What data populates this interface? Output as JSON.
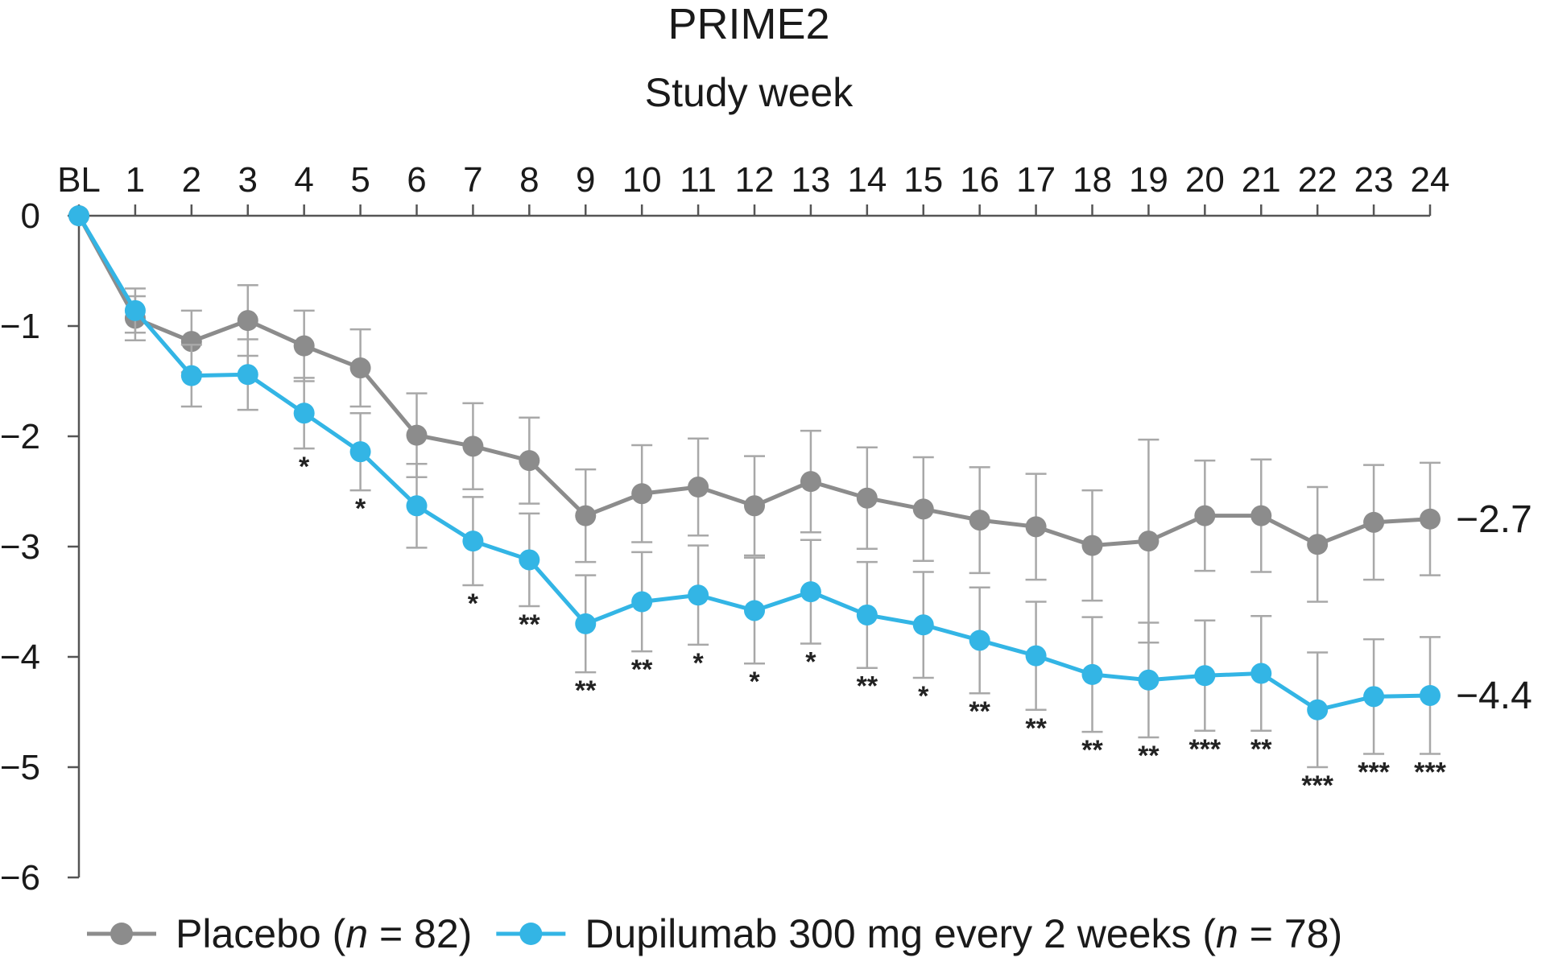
{
  "chart_data": {
    "type": "line",
    "title": "PRIME2",
    "xlabel": "Study week",
    "ylabel": "",
    "x_tick_labels": [
      "BL",
      "1",
      "2",
      "3",
      "4",
      "5",
      "6",
      "7",
      "8",
      "9",
      "10",
      "11",
      "12",
      "13",
      "14",
      "15",
      "16",
      "17",
      "18",
      "19",
      "20",
      "21",
      "22",
      "23",
      "24"
    ],
    "x": [
      0,
      1,
      2,
      3,
      4,
      5,
      6,
      7,
      8,
      9,
      10,
      11,
      12,
      13,
      14,
      15,
      16,
      17,
      18,
      19,
      20,
      21,
      22,
      23,
      24
    ],
    "ylim": [
      -6,
      0
    ],
    "y_ticks": [
      0,
      -1,
      -2,
      -3,
      -4,
      -5,
      -6
    ],
    "y_tick_labels": [
      "0",
      "−1",
      "−2",
      "−3",
      "−4",
      "−5",
      "−6"
    ],
    "x_axis_position": "top",
    "grid": false,
    "legend_position": "bottom",
    "series": [
      {
        "name": "Placebo",
        "legend_n_label": "n",
        "legend_n_value": "82",
        "color": "#8c8c8c",
        "values": [
          0,
          -0.93,
          -1.14,
          -0.95,
          -1.18,
          -1.38,
          -1.99,
          -2.09,
          -2.22,
          -2.72,
          -2.52,
          -2.46,
          -2.63,
          -2.41,
          -2.56,
          -2.66,
          -2.76,
          -2.82,
          -2.99,
          -2.95,
          -2.72,
          -2.72,
          -2.98,
          -2.78,
          -2.75
        ],
        "error": [
          0,
          0.2,
          0.28,
          0.32,
          0.32,
          0.35,
          0.38,
          0.39,
          0.39,
          0.42,
          0.44,
          0.44,
          0.45,
          0.46,
          0.46,
          0.47,
          0.48,
          0.48,
          0.5,
          0.92,
          0.5,
          0.51,
          0.52,
          0.52,
          0.51
        ],
        "end_label": "−2.7"
      },
      {
        "name": "Dupilumab 300 mg every 2 weeks",
        "legend_n_label": "n",
        "legend_n_value": "78",
        "color": "#33b5e5",
        "values": [
          0,
          -0.86,
          -1.45,
          -1.44,
          -1.79,
          -2.14,
          -2.63,
          -2.95,
          -3.12,
          -3.7,
          -3.5,
          -3.44,
          -3.58,
          -3.41,
          -3.62,
          -3.71,
          -3.85,
          -3.99,
          -4.16,
          -4.21,
          -4.17,
          -4.15,
          -4.48,
          -4.36,
          -4.35
        ],
        "error": [
          0,
          0.2,
          0.28,
          0.32,
          0.32,
          0.35,
          0.38,
          0.4,
          0.42,
          0.44,
          0.45,
          0.45,
          0.48,
          0.47,
          0.48,
          0.48,
          0.48,
          0.49,
          0.52,
          0.52,
          0.5,
          0.52,
          0.52,
          0.52,
          0.53
        ],
        "end_label": "−4.4"
      }
    ],
    "significance": [
      "",
      "",
      "",
      "",
      "*",
      "*",
      "",
      "*",
      "**",
      "**",
      "**",
      "*",
      "*",
      "*",
      "**",
      "*",
      "**",
      "**",
      "**",
      "**",
      "***",
      "**",
      "***",
      "***",
      "***"
    ]
  }
}
